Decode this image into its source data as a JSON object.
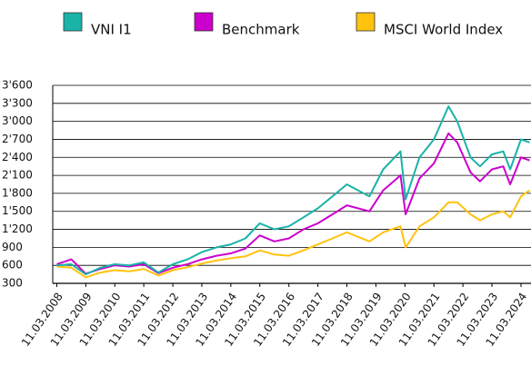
{
  "chart_data": {
    "type": "line",
    "x": [
      "2008-03-11",
      "2008-09-11",
      "2009-03-11",
      "2009-09-11",
      "2010-03-11",
      "2010-09-11",
      "2011-03-11",
      "2011-09-11",
      "2012-03-11",
      "2012-09-11",
      "2013-03-11",
      "2013-09-11",
      "2014-03-11",
      "2014-09-11",
      "2015-03-11",
      "2015-09-11",
      "2016-03-11",
      "2016-09-11",
      "2017-03-11",
      "2017-09-11",
      "2018-03-11",
      "2018-12-20",
      "2019-06-11",
      "2020-01-15",
      "2020-03-20",
      "2020-09-11",
      "2021-03-11",
      "2021-09-11",
      "2021-12-30",
      "2022-06-15",
      "2022-10-12",
      "2023-03-11",
      "2023-08-01",
      "2023-10-27",
      "2024-03-11",
      "2024-06-28"
    ],
    "series": [
      {
        "name": "VNI I1",
        "color": "#19b3a8",
        "values": [
          600,
          620,
          450,
          560,
          620,
          600,
          650,
          480,
          620,
          700,
          820,
          900,
          950,
          1050,
          1300,
          1200,
          1250,
          1400,
          1550,
          1750,
          1950,
          1750,
          2200,
          2500,
          1700,
          2400,
          2700,
          3250,
          3000,
          2400,
          2250,
          2450,
          2500,
          2200,
          2700,
          2650
        ]
      },
      {
        "name": "Benchmark",
        "color": "#cc00cc",
        "values": [
          620,
          700,
          460,
          540,
          600,
          580,
          620,
          470,
          560,
          620,
          700,
          760,
          800,
          880,
          1100,
          1000,
          1050,
          1200,
          1300,
          1450,
          1600,
          1500,
          1850,
          2100,
          1450,
          2050,
          2300,
          2800,
          2650,
          2150,
          2000,
          2200,
          2250,
          1950,
          2400,
          2350
        ]
      },
      {
        "name": "MSCI World Index",
        "color": "#ffc20e",
        "values": [
          580,
          560,
          400,
          480,
          520,
          500,
          540,
          430,
          520,
          570,
          630,
          680,
          720,
          750,
          850,
          780,
          760,
          850,
          950,
          1050,
          1150,
          1000,
          1150,
          1250,
          900,
          1250,
          1400,
          1650,
          1650,
          1450,
          1350,
          1450,
          1500,
          1400,
          1750,
          1850
        ]
      }
    ],
    "xlim": [
      "2008-01-20",
      "2024-07-15"
    ],
    "xticks": [
      {
        "value": "2008-03-11",
        "label": "11.03.2008"
      },
      {
        "value": "2009-03-11",
        "label": "11.03.2009"
      },
      {
        "value": "2010-03-11",
        "label": "11.03.2010"
      },
      {
        "value": "2011-03-11",
        "label": "11.03.2011"
      },
      {
        "value": "2012-03-11",
        "label": "11.03.2012"
      },
      {
        "value": "2013-03-11",
        "label": "11.03.2013"
      },
      {
        "value": "2014-03-11",
        "label": "11.03.2014"
      },
      {
        "value": "2015-03-11",
        "label": "11.03.2015"
      },
      {
        "value": "2016-03-11",
        "label": "11.03.2016"
      },
      {
        "value": "2017-03-11",
        "label": "11.03.2017"
      },
      {
        "value": "2018-03-11",
        "label": "11.03.2018"
      },
      {
        "value": "2019-03-11",
        "label": "11.03.2019"
      },
      {
        "value": "2020-03-11",
        "label": "11.03.2020"
      },
      {
        "value": "2021-03-11",
        "label": "11.03.2021"
      },
      {
        "value": "2022-03-11",
        "label": "11.03.2022"
      },
      {
        "value": "2023-03-11",
        "label": "11.03.2023"
      },
      {
        "value": "2024-03-11",
        "label": "11.03.2024"
      }
    ],
    "ylim": [
      300,
      3600
    ],
    "yticks": [
      300,
      600,
      900,
      {
        "value": 1200,
        "label": "1'200"
      },
      {
        "value": 1500,
        "label": "1'500"
      },
      {
        "value": 1800,
        "label": "1'800"
      },
      {
        "value": 2100,
        "label": "2'100"
      },
      {
        "value": 2400,
        "label": "2'400"
      },
      {
        "value": 2700,
        "label": "2'700"
      },
      {
        "value": 3000,
        "label": "3'000"
      },
      {
        "value": 3300,
        "label": "3'300"
      },
      {
        "value": 3600,
        "label": "3'600"
      }
    ],
    "grid": true,
    "legend": "top"
  }
}
